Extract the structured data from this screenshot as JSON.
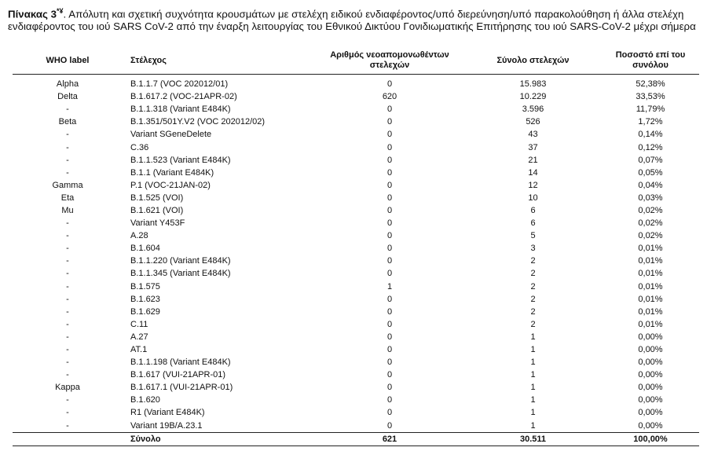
{
  "caption": {
    "label": "Πίνακας 3",
    "marks": "*¥",
    "text": ". Απόλυτη και σχετική συχνότητα κρουσμάτων με στελέχη ειδικού ενδιαφέροντος/υπό διερεύνηση/υπό παρακολούθηση ή άλλα στελέχη ενδιαφέροντος του ιού SARS CoV-2 από την έναρξη λειτουργίας του Εθνικού Δικτύου Γονιδιωματικής Επιτήρησης του ιού SARS-CoV-2 μέχρι σήμερα"
  },
  "table": {
    "header": [
      "WHO label",
      "Στέλεχος",
      "Αριθμός νεοαπομονωθέντων στελεχών",
      "Σύνολο στελεχών",
      "Ποσοστό επί του συνόλου"
    ],
    "rows": [
      [
        "Alpha",
        "B.1.1.7 (VOC 202012/01)",
        "0",
        "15.983",
        "52,38%"
      ],
      [
        "Delta",
        "B.1.617.2 (VOC-21APR-02)",
        "620",
        "10.229",
        "33,53%"
      ],
      [
        "-",
        "B.1.1.318 (Variant E484K)",
        "0",
        "3.596",
        "11,79%"
      ],
      [
        "Beta",
        "B.1.351/501Y.V2 (VOC 202012/02)",
        "0",
        "526",
        "1,72%"
      ],
      [
        "-",
        "Variant SGeneDelete",
        "0",
        "43",
        "0,14%"
      ],
      [
        "-",
        "C.36",
        "0",
        "37",
        "0,12%"
      ],
      [
        "-",
        "B.1.1.523 (Variant E484K)",
        "0",
        "21",
        "0,07%"
      ],
      [
        "-",
        "B.1.1 (Variant E484K)",
        "0",
        "14",
        "0,05%"
      ],
      [
        "Gamma",
        "P.1 (VOC-21JAN-02)",
        "0",
        "12",
        "0,04%"
      ],
      [
        "Eta",
        "B.1.525 (VOI)",
        "0",
        "10",
        "0,03%"
      ],
      [
        "Mu",
        "B.1.621 (VOI)",
        "0",
        "6",
        "0,02%"
      ],
      [
        "-",
        "Variant Y453F",
        "0",
        "6",
        "0,02%"
      ],
      [
        "-",
        "A.28",
        "0",
        "5",
        "0,02%"
      ],
      [
        "-",
        "B.1.604",
        "0",
        "3",
        "0,01%"
      ],
      [
        "-",
        "B.1.1.220 (Variant E484K)",
        "0",
        "2",
        "0,01%"
      ],
      [
        "-",
        "B.1.1.345 (Variant E484K)",
        "0",
        "2",
        "0,01%"
      ],
      [
        "-",
        "B.1.575",
        "1",
        "2",
        "0,01%"
      ],
      [
        "-",
        "B.1.623",
        "0",
        "2",
        "0,01%"
      ],
      [
        "-",
        "B.1.629",
        "0",
        "2",
        "0,01%"
      ],
      [
        "-",
        "C.11",
        "0",
        "2",
        "0,01%"
      ],
      [
        "-",
        "A.27",
        "0",
        "1",
        "0,00%"
      ],
      [
        "-",
        "AT.1",
        "0",
        "1",
        "0,00%"
      ],
      [
        "-",
        "B.1.1.198 (Variant E484K)",
        "0",
        "1",
        "0,00%"
      ],
      [
        "-",
        "B.1.617 (VUI-21APR-01)",
        "0",
        "1",
        "0,00%"
      ],
      [
        "Kappa",
        "B.1.617.1 (VUI-21APR-01)",
        "0",
        "1",
        "0,00%"
      ],
      [
        "-",
        "B.1.620",
        "0",
        "1",
        "0,00%"
      ],
      [
        "-",
        "R1 (Variant E484K)",
        "0",
        "1",
        "0,00%"
      ],
      [
        "-",
        "Variant 19B/A.23.1",
        "0",
        "1",
        "0,00%"
      ]
    ],
    "total": {
      "label": "Σύνολο",
      "values": [
        "621",
        "30.511",
        "100,00%"
      ]
    }
  }
}
